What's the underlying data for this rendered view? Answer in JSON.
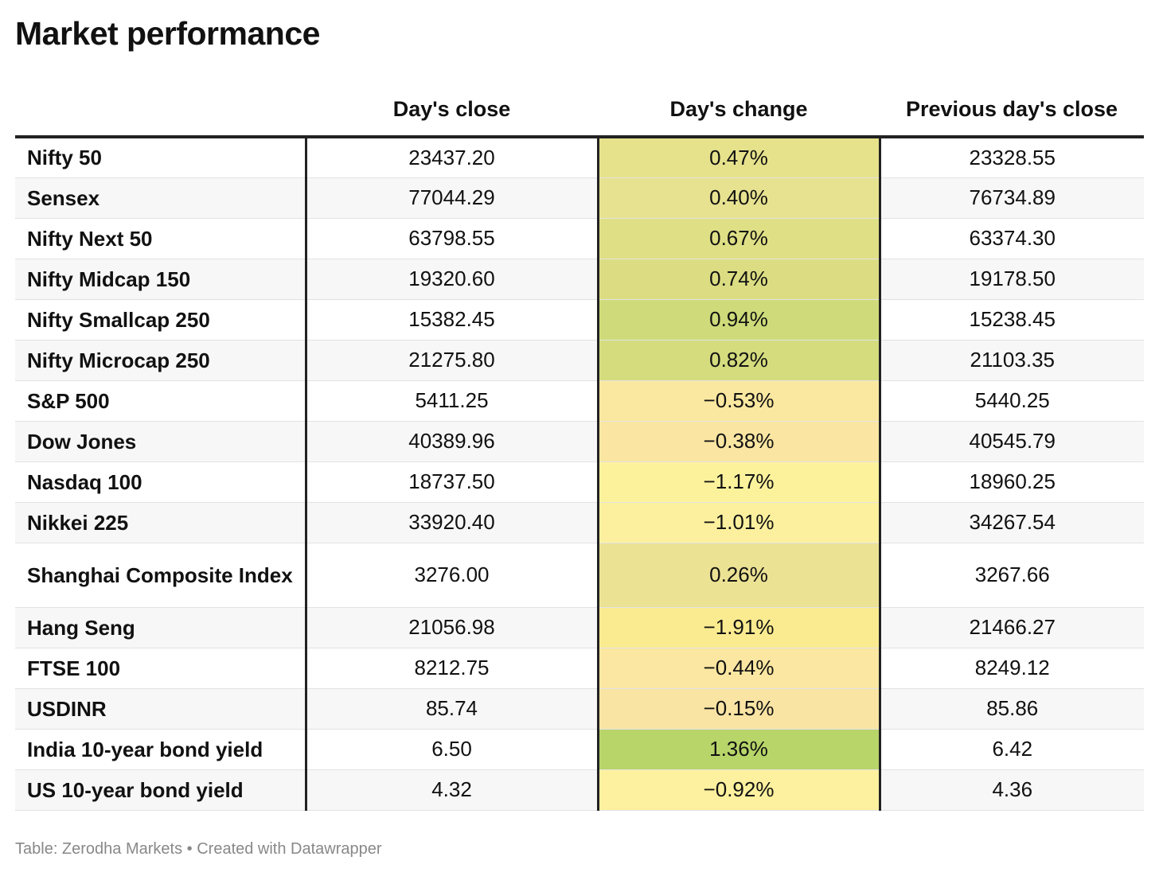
{
  "title": "Market performance",
  "footer": "Table: Zerodha Markets • Created with Datawrapper",
  "columns": [
    "",
    "Day's close",
    "Day's change",
    "Previous day's close"
  ],
  "chart_data": {
    "type": "table",
    "title": "Market performance",
    "columns": [
      "",
      "Day's close",
      "Day's change",
      "Previous day's close"
    ],
    "rows": [
      {
        "name": "Nifty 50",
        "close": "23437.20",
        "change": "0.47%",
        "prev": "23328.55",
        "color": "#e6e28c"
      },
      {
        "name": "Sensex",
        "close": "77044.29",
        "change": "0.40%",
        "prev": "76734.89",
        "color": "#e7e290"
      },
      {
        "name": "Nifty Next 50",
        "close": "63798.55",
        "change": "0.67%",
        "prev": "63374.30",
        "color": "#dfdf86"
      },
      {
        "name": "Nifty Midcap 150",
        "close": "19320.60",
        "change": "0.74%",
        "prev": "19178.50",
        "color": "#dcdd83"
      },
      {
        "name": "Nifty Smallcap 250",
        "close": "15382.45",
        "change": "0.94%",
        "prev": "15238.45",
        "color": "#cfdb7a"
      },
      {
        "name": "Nifty Microcap 250",
        "close": "21275.80",
        "change": "0.82%",
        "prev": "21103.35",
        "color": "#d4dc7e"
      },
      {
        "name": "S&P 500",
        "close": "5411.25",
        "change": "−0.53%",
        "prev": "5440.25",
        "color": "#fbe8a0"
      },
      {
        "name": "Dow Jones",
        "close": "40389.96",
        "change": "−0.38%",
        "prev": "40545.79",
        "color": "#fae6a2"
      },
      {
        "name": "Nasdaq 100",
        "close": "18737.50",
        "change": "−1.17%",
        "prev": "18960.25",
        "color": "#fdf29c"
      },
      {
        "name": "Nikkei 225",
        "close": "33920.40",
        "change": "−1.01%",
        "prev": "34267.54",
        "color": "#fcf09e"
      },
      {
        "name": "Shanghai Composite Index",
        "close": "3276.00",
        "change": "0.26%",
        "prev": "3267.66",
        "color": "#ece294",
        "tall": true
      },
      {
        "name": "Hang Seng",
        "close": "21056.98",
        "change": "−1.91%",
        "prev": "21466.27",
        "color": "#fbeb90"
      },
      {
        "name": "FTSE 100",
        "close": "8212.75",
        "change": "−0.44%",
        "prev": "8249.12",
        "color": "#fbe7a1"
      },
      {
        "name": "USDINR",
        "close": "85.74",
        "change": "−0.15%",
        "prev": "85.86",
        "color": "#f9e4a4"
      },
      {
        "name": "India 10-year bond yield",
        "close": "6.50",
        "change": "1.36%",
        "prev": "6.42",
        "color": "#b8d56a"
      },
      {
        "name": "US 10-year bond yield",
        "close": "4.32",
        "change": "−0.92%",
        "prev": "4.36",
        "color": "#fdf09e"
      }
    ]
  }
}
